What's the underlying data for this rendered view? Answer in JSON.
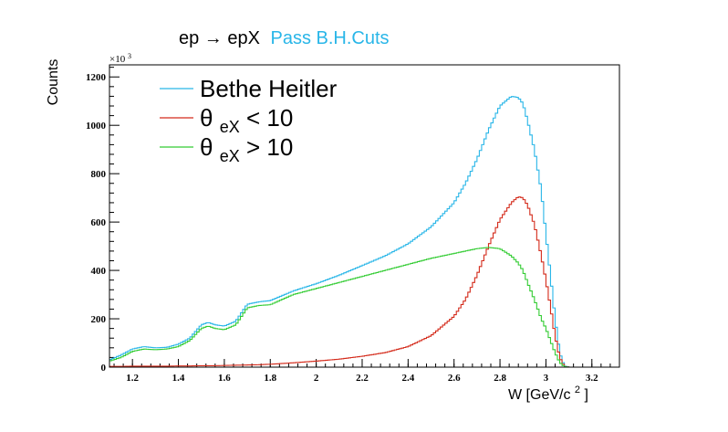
{
  "title": {
    "main": "ep → epX",
    "highlight": "Pass B.H.Cuts",
    "highlight_color": "#29b6e8"
  },
  "axes": {
    "ylabel": "Counts",
    "xlabel_main": "W [GeV/c",
    "xlabel_sup": "2",
    "xlabel_close": "]",
    "exponent_base": "×10",
    "exponent_power": "3"
  },
  "legend": {
    "entries": [
      {
        "label": "Bethe Heitler",
        "sub": "",
        "suffix": "",
        "color": "#29b6e8"
      },
      {
        "label": "θ",
        "sub": "eX",
        "suffix": " < 10",
        "color": "#d42a1a"
      },
      {
        "label": "θ",
        "sub": "eX",
        "suffix": " > 10",
        "color": "#33cc33"
      }
    ]
  },
  "chart_data": {
    "type": "line",
    "xlim": [
      1.1,
      3.32
    ],
    "ylim": [
      0,
      1250
    ],
    "x_ticks": [
      "1.2",
      "1.4",
      "1.6",
      "1.8",
      "2",
      "2.2",
      "2.4",
      "2.6",
      "2.8",
      "3",
      "3.2"
    ],
    "y_ticks": [
      "0",
      "200",
      "400",
      "600",
      "800",
      "1000",
      "1200"
    ],
    "xlabel": "W [GeV/c2]",
    "ylabel": "Counts",
    "y_multiplier": "x10^3",
    "legend_position": "top-left",
    "x": [
      1.1,
      1.15,
      1.2,
      1.25,
      1.3,
      1.35,
      1.4,
      1.45,
      1.5,
      1.53,
      1.56,
      1.6,
      1.65,
      1.7,
      1.75,
      1.8,
      1.9,
      2.0,
      2.1,
      2.2,
      2.3,
      2.4,
      2.5,
      2.6,
      2.65,
      2.7,
      2.75,
      2.8,
      2.85,
      2.88,
      2.9,
      2.92,
      2.95,
      2.98,
      3.0,
      3.02,
      3.04,
      3.06,
      3.08,
      3.1,
      3.2,
      3.32
    ],
    "series": [
      {
        "name": "Bethe Heitler",
        "color": "#29b6e8",
        "values": [
          30,
          50,
          75,
          85,
          80,
          82,
          95,
          120,
          175,
          185,
          175,
          170,
          190,
          260,
          270,
          275,
          315,
          345,
          380,
          420,
          460,
          510,
          580,
          680,
          760,
          860,
          980,
          1080,
          1120,
          1115,
          1090,
          1020,
          900,
          730,
          550,
          380,
          200,
          60,
          5,
          0,
          0,
          0
        ]
      },
      {
        "name": "θeX < 10",
        "color": "#d42a1a",
        "values": [
          3,
          3,
          4,
          4,
          4,
          4,
          5,
          5,
          6,
          6,
          6,
          7,
          8,
          9,
          10,
          12,
          18,
          25,
          33,
          45,
          60,
          85,
          130,
          210,
          280,
          380,
          500,
          610,
          680,
          705,
          700,
          670,
          590,
          460,
          360,
          250,
          130,
          40,
          3,
          0,
          0,
          0
        ]
      },
      {
        "name": "θeX > 10",
        "color": "#33cc33",
        "values": [
          25,
          40,
          65,
          75,
          72,
          75,
          85,
          110,
          160,
          170,
          160,
          155,
          175,
          245,
          255,
          258,
          300,
          325,
          350,
          375,
          400,
          425,
          450,
          470,
          480,
          490,
          495,
          490,
          460,
          430,
          400,
          350,
          280,
          200,
          160,
          110,
          60,
          20,
          2,
          0,
          0,
          0
        ]
      }
    ]
  }
}
